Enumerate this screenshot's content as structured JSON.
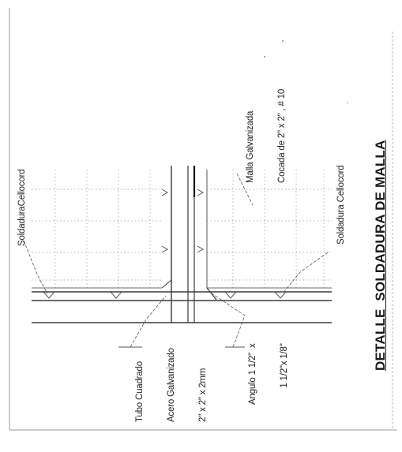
{
  "title": "DETALLE  SOLDADURA DE MALLA",
  "labels": {
    "soldadura_left": "SoldaduraCellocord",
    "malla_line1": "Malla Galvanizada",
    "malla_line2": "Cocada de 2\" x 2\" , # 10",
    "soldadura_right": "Soldadura Cellocord",
    "tubo_line1": "Tubo Cuadrado",
    "tubo_line2": "Acero Galvanizado",
    "tubo_line3": "2\" x 2\" x 2mm",
    "angulo_line1": "Angulo 1 1/2\"  x",
    "angulo_line2": "1 1/2\"x 1/8\""
  },
  "colors": {
    "line": "#3a3a3a",
    "mesh": "#8a8a8a",
    "border": "#9a9a9a"
  }
}
